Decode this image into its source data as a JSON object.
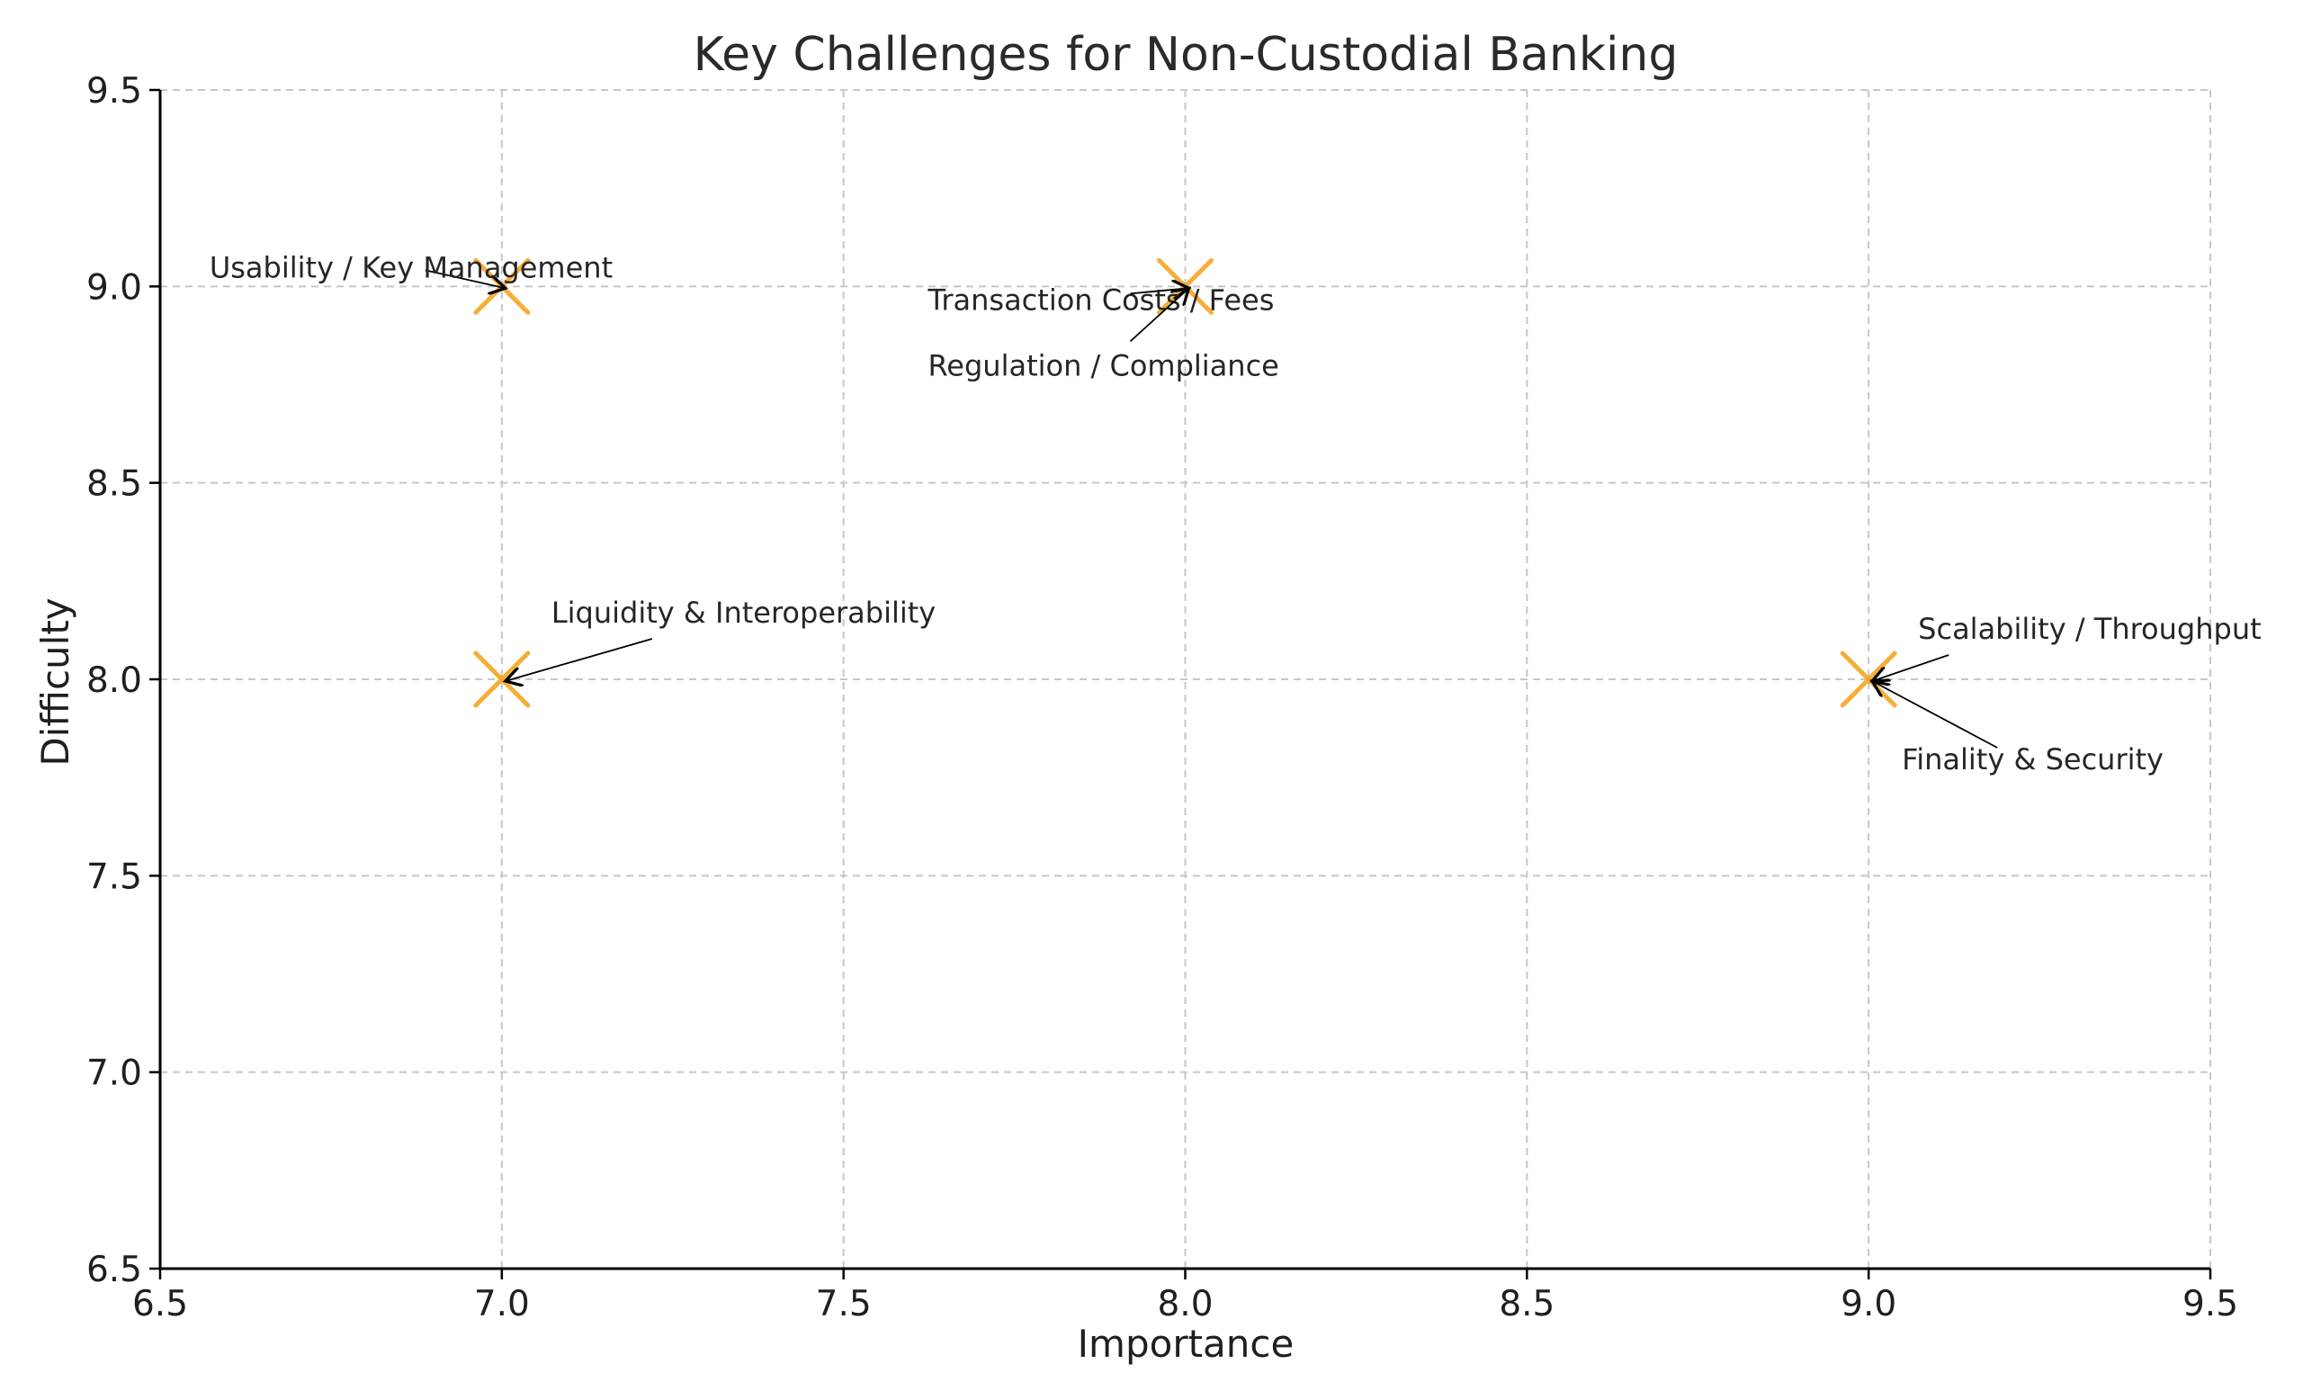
{
  "chart_data": {
    "type": "scatter",
    "title": "Key Challenges for Non-Custodial Banking",
    "xlabel": "Importance",
    "ylabel": "Difficulty",
    "xlim": [
      6.5,
      9.5
    ],
    "ylim": [
      6.5,
      9.5
    ],
    "x_ticks": [
      "6.5",
      "7.0",
      "7.5",
      "8.0",
      "8.5",
      "9.0",
      "9.5"
    ],
    "y_ticks": [
      "6.5",
      "7.0",
      "7.5",
      "8.0",
      "8.5",
      "9.0",
      "9.5"
    ],
    "grid": true,
    "marker": "x",
    "color": "#F5A623",
    "points": [
      {
        "x": 7.0,
        "y": 9.0,
        "label": "Usability / Key Management"
      },
      {
        "x": 8.0,
        "y": 9.0,
        "label": "Transaction Costs / Fees"
      },
      {
        "x": 8.0,
        "y": 9.0,
        "label": "Regulation / Compliance"
      },
      {
        "x": 7.0,
        "y": 8.0,
        "label": "Liquidity & Interoperability"
      },
      {
        "x": 9.0,
        "y": 8.0,
        "label": "Scalability / Throughput"
      },
      {
        "x": 9.0,
        "y": 8.0,
        "label": "Finality & Security"
      }
    ]
  }
}
